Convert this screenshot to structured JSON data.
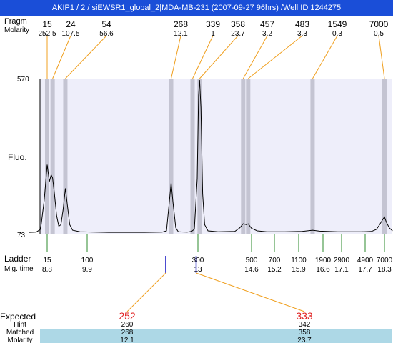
{
  "window": {
    "title": "AKIP1 / 2 / siEWSR1_global_2|MDA-MB-231 (2007-09-27 96hrs) /Well ID 1244275"
  },
  "row_labels": {
    "fragment": "Fragm",
    "molarity": "Molarity",
    "fluo": "Fluo.",
    "ladder": "Ladder",
    "mig_time": "Mig. time",
    "expected": "Expected",
    "hint": "Hint",
    "matched": "Matched",
    "molarity_bottom": "Molarity"
  },
  "colors": {
    "title_bg": "#1a4ed8",
    "plot_bg": "#eeeefa",
    "peak_band": "#c4c4d2",
    "leader_orange": "#f0a020",
    "ladder_green": "#2e8b2e",
    "expected_blue": "#1010c0",
    "expected_red": "#e02020",
    "table_band": "#add8e6"
  },
  "chart_data": {
    "type": "line",
    "y_axis": {
      "min": 73,
      "max": 570,
      "tick_labels": [
        "570",
        "73"
      ]
    },
    "peaks": [
      {
        "size": "15",
        "molarity": "252.5",
        "mig_time": 8.8
      },
      {
        "size": "24",
        "molarity": "107.5",
        "mig_time": 8.95
      },
      {
        "size": "54",
        "molarity": "56.6",
        "mig_time": 9.3
      },
      {
        "size": "268",
        "molarity": "12.1",
        "mig_time": 12.25
      },
      {
        "size": "339",
        "molarity": "1",
        "mig_time": 12.85
      },
      {
        "size": "358",
        "molarity": "23.7",
        "mig_time": 13.05
      },
      {
        "size": "457",
        "molarity": "3.2",
        "mig_time": 14.35
      },
      {
        "size": "483",
        "molarity": "3.3",
        "mig_time": 14.5
      },
      {
        "size": "1549",
        "molarity": "0.3",
        "mig_time": 16.3
      },
      {
        "size": "7000",
        "molarity": "0.5",
        "mig_time": 18.3
      }
    ],
    "ladder": [
      {
        "size": "15",
        "mig_time": "8.8"
      },
      {
        "size": "100",
        "mig_time": "9.9"
      },
      {
        "size": "300",
        "mig_time": "13"
      },
      {
        "size": "500",
        "mig_time": "14.6"
      },
      {
        "size": "700",
        "mig_time": "15.2"
      },
      {
        "size": "1100",
        "mig_time": "15.9"
      },
      {
        "size": "1900",
        "mig_time": "16.6"
      },
      {
        "size": "2900",
        "mig_time": "17.1"
      },
      {
        "size": "4900",
        "mig_time": "17.7"
      },
      {
        "size": "7000",
        "mig_time": "18.3"
      }
    ],
    "expected": [
      {
        "expected": "252",
        "hint": "260",
        "matched": "268",
        "molarity": "12.1",
        "mig_time": 12.1
      },
      {
        "expected": "333",
        "hint": "342",
        "matched": "358",
        "molarity": "23.7",
        "mig_time": 12.95
      }
    ],
    "trace": [
      [
        8.3,
        75
      ],
      [
        8.5,
        76
      ],
      [
        8.62,
        85
      ],
      [
        8.72,
        180
      ],
      [
        8.8,
        295
      ],
      [
        8.86,
        240
      ],
      [
        8.91,
        262
      ],
      [
        8.95,
        252
      ],
      [
        9.0,
        200
      ],
      [
        9.06,
        130
      ],
      [
        9.12,
        95
      ],
      [
        9.18,
        100
      ],
      [
        9.24,
        150
      ],
      [
        9.3,
        218
      ],
      [
        9.36,
        160
      ],
      [
        9.42,
        100
      ],
      [
        9.5,
        82
      ],
      [
        9.7,
        77
      ],
      [
        10.5,
        75
      ],
      [
        11.5,
        75
      ],
      [
        12.0,
        76
      ],
      [
        12.12,
        80
      ],
      [
        12.2,
        175
      ],
      [
        12.25,
        236
      ],
      [
        12.3,
        175
      ],
      [
        12.38,
        90
      ],
      [
        12.45,
        77
      ],
      [
        12.7,
        76
      ],
      [
        12.82,
        78
      ],
      [
        12.9,
        85
      ],
      [
        12.98,
        250
      ],
      [
        13.02,
        520
      ],
      [
        13.05,
        570
      ],
      [
        13.09,
        480
      ],
      [
        13.14,
        200
      ],
      [
        13.2,
        100
      ],
      [
        13.3,
        80
      ],
      [
        13.6,
        77
      ],
      [
        14.1,
        78
      ],
      [
        14.25,
        90
      ],
      [
        14.35,
        103
      ],
      [
        14.45,
        100
      ],
      [
        14.5,
        103
      ],
      [
        14.6,
        88
      ],
      [
        14.75,
        80
      ],
      [
        15.0,
        77
      ],
      [
        15.5,
        77
      ],
      [
        16.0,
        78
      ],
      [
        16.3,
        82
      ],
      [
        16.5,
        79
      ],
      [
        17.0,
        77
      ],
      [
        17.6,
        77
      ],
      [
        17.9,
        78
      ],
      [
        18.05,
        85
      ],
      [
        18.15,
        100
      ],
      [
        18.25,
        118
      ],
      [
        18.3,
        125
      ],
      [
        18.36,
        108
      ],
      [
        18.45,
        90
      ],
      [
        18.55,
        80
      ]
    ]
  }
}
